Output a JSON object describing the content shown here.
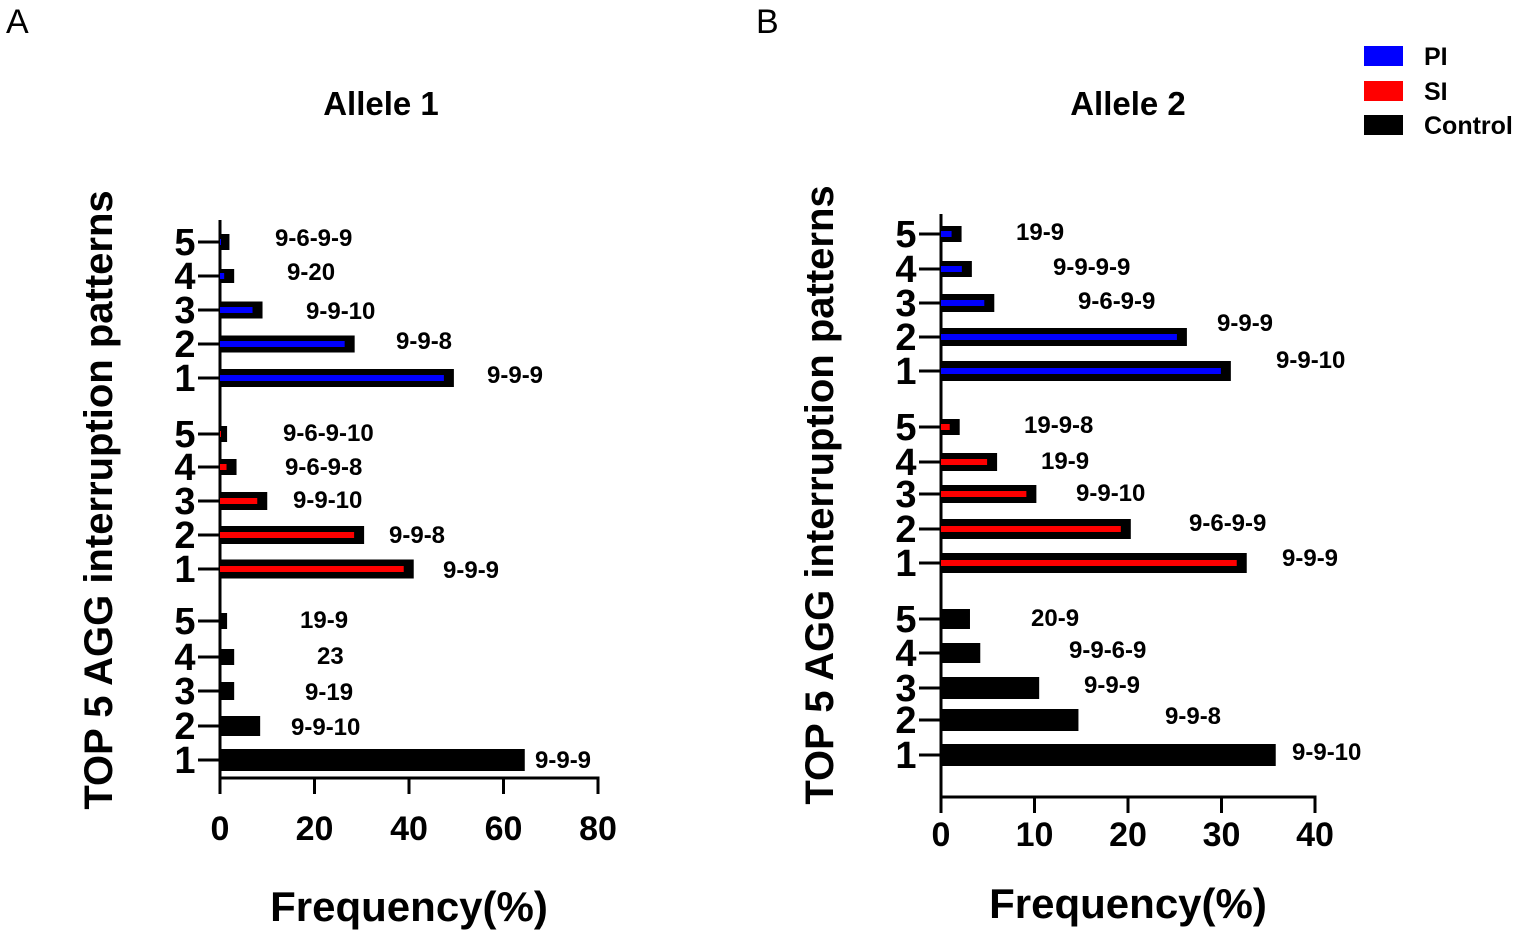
{
  "legend": [
    {
      "label": "PI",
      "color": "#0000ff"
    },
    {
      "label": "SI",
      "color": "#ff0000"
    },
    {
      "label": "Control",
      "color": "#000000"
    }
  ],
  "chart_data": [
    {
      "type": "bar",
      "orientation": "horizontal",
      "panel": "A",
      "title": "Allele 1",
      "ylabel": "TOP 5 AGG interruption patterns",
      "xlabel": "Frequency(%)",
      "xlim": [
        0,
        80
      ],
      "xticks": [
        "0",
        "20",
        "40",
        "60",
        "80"
      ],
      "xtick_values": [
        0,
        20,
        40,
        60,
        80
      ],
      "groups": [
        {
          "group": "PI",
          "ranks": [
            "5",
            "4",
            "3",
            "2",
            "1"
          ],
          "values": [
            2,
            3,
            9,
            28.5,
            49.5
          ],
          "labels": [
            "9-6-9-9",
            "9-20",
            "9-9-10",
            "9-9-8",
            "9-9-9"
          ]
        },
        {
          "group": "SI",
          "ranks": [
            "5",
            "4",
            "3",
            "2",
            "1"
          ],
          "values": [
            1.5,
            3.5,
            10,
            30.5,
            41
          ],
          "labels": [
            "9-6-9-10",
            "9-6-9-8",
            "9-9-10",
            "9-9-8",
            "9-9-9"
          ]
        },
        {
          "group": "Control",
          "ranks": [
            "5",
            "4",
            "3",
            "2",
            "1"
          ],
          "values": [
            1.5,
            3,
            3,
            8.5,
            64.5
          ],
          "labels": [
            "19-9",
            "23",
            "9-19",
            "9-9-10",
            "9-9-9"
          ]
        }
      ]
    },
    {
      "type": "bar",
      "orientation": "horizontal",
      "panel": "B",
      "title": "Allele 2",
      "ylabel": "TOP 5 AGG interruption patterns",
      "xlabel": "Frequency(%)",
      "xlim": [
        0,
        40
      ],
      "xticks": [
        "0",
        "10",
        "20",
        "30",
        "40"
      ],
      "xtick_values": [
        0,
        10,
        20,
        30,
        40
      ],
      "groups": [
        {
          "group": "PI",
          "ranks": [
            "5",
            "4",
            "3",
            "2",
            "1"
          ],
          "values": [
            2.2,
            3.3,
            5.7,
            26.3,
            31
          ],
          "labels": [
            "19-9",
            "9-9-9-9",
            "9-6-9-9",
            "9-9-9",
            "9-9-10"
          ]
        },
        {
          "group": "SI",
          "ranks": [
            "5",
            "4",
            "3",
            "2",
            "1"
          ],
          "values": [
            2,
            6,
            10.2,
            20.3,
            32.7
          ],
          "labels": [
            "19-9-8",
            "19-9",
            "9-9-10",
            "9-6-9-9",
            "9-9-9"
          ]
        },
        {
          "group": "Control",
          "ranks": [
            "5",
            "4",
            "3",
            "2",
            "1"
          ],
          "values": [
            3.1,
            4.2,
            10.5,
            14.7,
            35.8
          ],
          "labels": [
            "20-9",
            "9-9-6-9",
            "9-9-9",
            "9-9-8",
            "9-9-10"
          ]
        }
      ]
    }
  ]
}
